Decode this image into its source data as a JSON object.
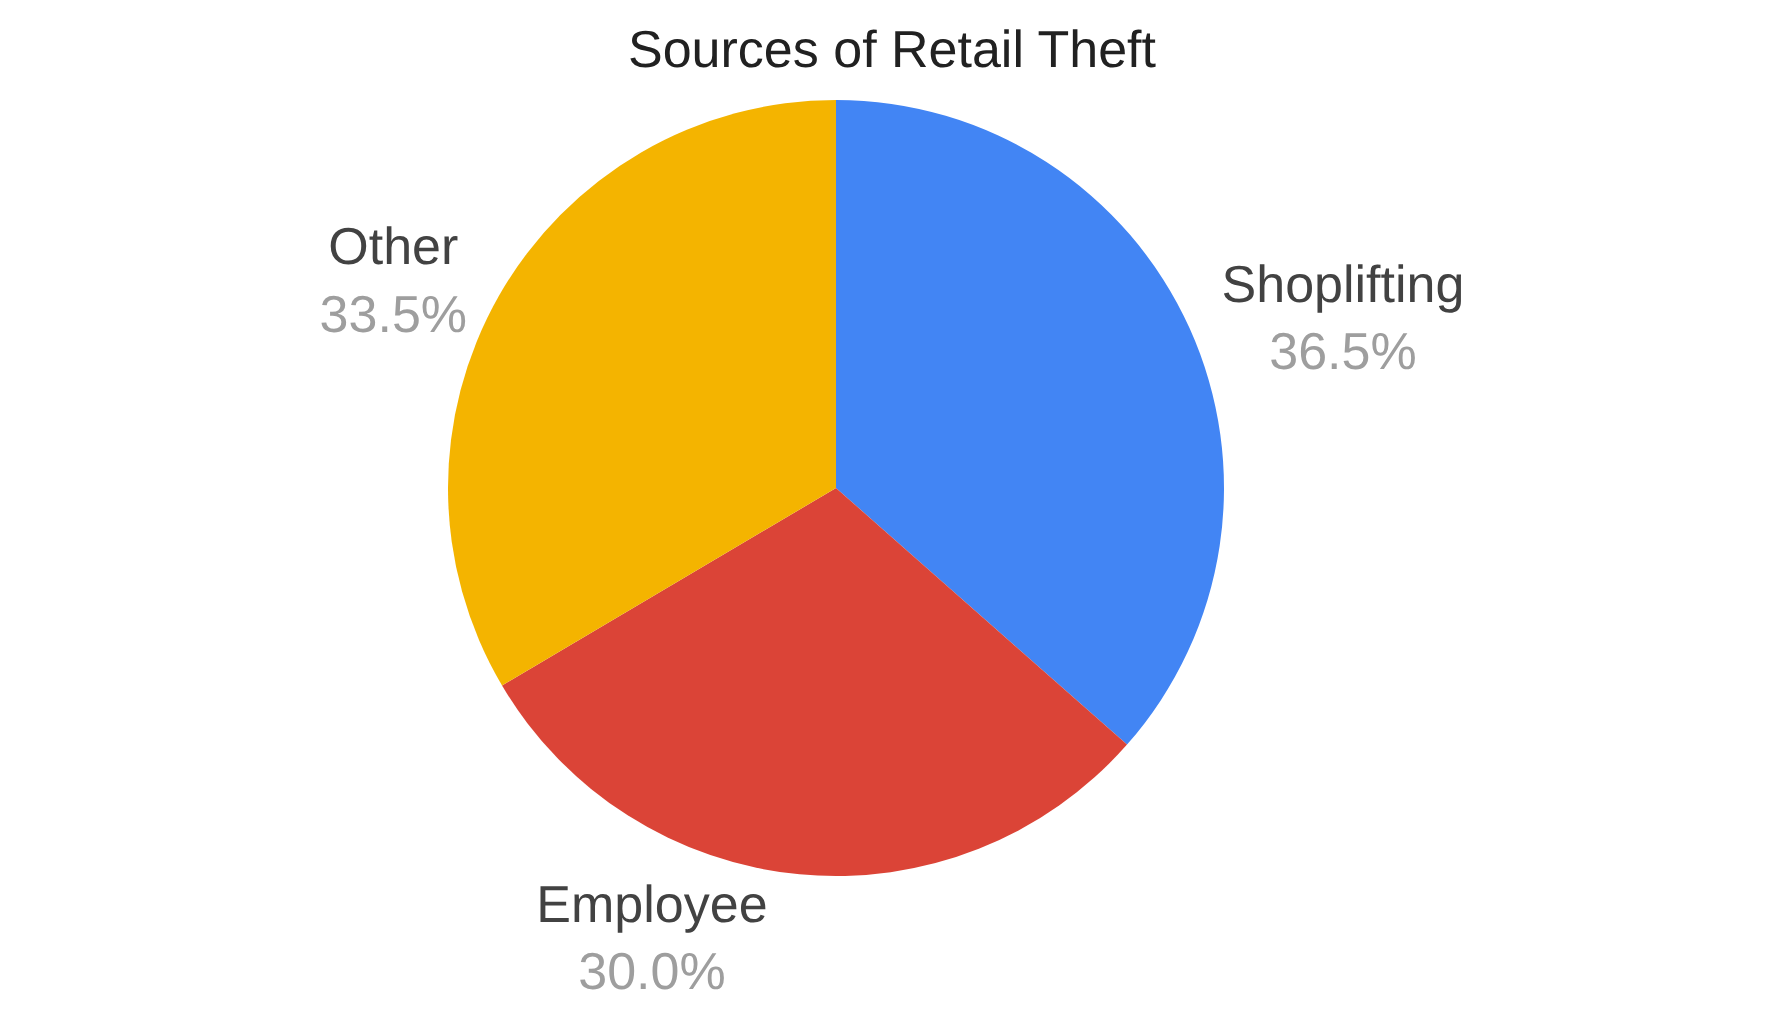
{
  "chart_data": {
    "type": "pie",
    "title": "Sources of Retail Theft",
    "categories": [
      "Shoplifting",
      "Employee",
      "Other"
    ],
    "values": [
      36.5,
      30.0,
      33.5
    ],
    "colors": [
      "#4285f4",
      "#db4437",
      "#f4b400"
    ],
    "value_labels": [
      "36.5%",
      "30.0%",
      "33.5%"
    ]
  }
}
